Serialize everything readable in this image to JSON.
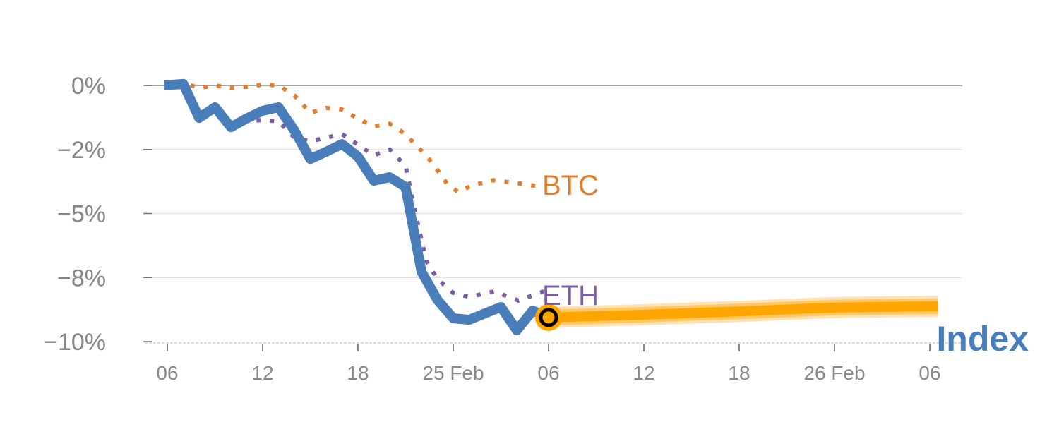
{
  "chart_data": {
    "type": "line",
    "title": "",
    "xlabel": "",
    "ylabel": "",
    "x_unit": "hours since 06:00 (24 Feb)",
    "xlim": [
      -0.5,
      49
    ],
    "ylim": [
      -10,
      0
    ],
    "grid": true,
    "y_ticks": [
      {
        "value": 0,
        "label": "0%"
      },
      {
        "value": -2.5,
        "label": "−2%"
      },
      {
        "value": -5,
        "label": "−5%"
      },
      {
        "value": -7.5,
        "label": "−8%"
      },
      {
        "value": -10,
        "label": "−10%"
      }
    ],
    "x_ticks": [
      {
        "value": 0,
        "label": "06"
      },
      {
        "value": 6,
        "label": "12"
      },
      {
        "value": 12,
        "label": "18"
      },
      {
        "value": 18,
        "label": "25 Feb"
      },
      {
        "value": 24,
        "label": "06"
      },
      {
        "value": 30,
        "label": "12"
      },
      {
        "value": 36,
        "label": "18"
      },
      {
        "value": 42,
        "label": "26 Feb"
      },
      {
        "value": 48,
        "label": "06"
      }
    ],
    "series": [
      {
        "name": "Index",
        "color": "#4a7ebb",
        "style": "solid",
        "x": [
          -0.2,
          1,
          2,
          3,
          4,
          5,
          6,
          7,
          8,
          9,
          10,
          11,
          12,
          13,
          14,
          15,
          16,
          17,
          18,
          19,
          21,
          22,
          23,
          24
        ],
        "y": [
          0,
          0.06,
          -1.27,
          -0.85,
          -1.63,
          -1.29,
          -0.99,
          -0.85,
          -1.76,
          -2.87,
          -2.59,
          -2.29,
          -2.78,
          -3.72,
          -3.58,
          -3.97,
          -7.27,
          -8.37,
          -9.09,
          -9.15,
          -8.65,
          -9.56,
          -8.79,
          -9.06
        ]
      },
      {
        "name": "BTC",
        "color": "#e07f2e",
        "style": "dotted",
        "x": [
          -0.2,
          1,
          2,
          3,
          4,
          5,
          6,
          7,
          8,
          9,
          10,
          11,
          12,
          13,
          14,
          15,
          15.6,
          16.3,
          17,
          17.6,
          18.3,
          19.2,
          20.5,
          22.2,
          23.7
        ],
        "y": [
          0.05,
          0.1,
          -0.1,
          0,
          -0.1,
          -0.05,
          0.03,
          0,
          -0.39,
          -1.07,
          -0.88,
          -0.94,
          -1.3,
          -1.6,
          -1.5,
          -1.9,
          -2.3,
          -2.73,
          -3.3,
          -3.83,
          -4.16,
          -3.9,
          -3.7,
          -3.83,
          -3.97
        ]
      },
      {
        "name": "ETH",
        "color": "#7b5ea7",
        "style": "dotted",
        "x": [
          -0.2,
          1,
          2,
          3,
          4,
          5,
          6,
          7,
          8,
          9,
          10,
          11,
          12,
          13,
          14,
          15,
          15.6,
          16.3,
          17,
          18,
          19,
          20.6,
          22.1,
          23.7
        ],
        "y": [
          0.05,
          0.08,
          -1.1,
          -0.8,
          -1.5,
          -1.4,
          -1.35,
          -1.4,
          -2.04,
          -2.18,
          -2.04,
          -1.9,
          -2.31,
          -2.73,
          -2.5,
          -3.14,
          -4.93,
          -6.86,
          -7.55,
          -8.1,
          -8.26,
          -8.04,
          -8.4,
          -8.04
        ]
      },
      {
        "name": "Forecast",
        "color": "#ffa500",
        "style": "band",
        "x": [
          24,
          30,
          36,
          42,
          48.5
        ],
        "y": [
          -9.06,
          -8.95,
          -8.82,
          -8.67,
          -8.62
        ]
      }
    ],
    "annotations": [
      {
        "text": "BTC",
        "series": "BTC"
      },
      {
        "text": "ETH",
        "series": "ETH"
      },
      {
        "text": "Index",
        "series": "Index"
      }
    ]
  }
}
